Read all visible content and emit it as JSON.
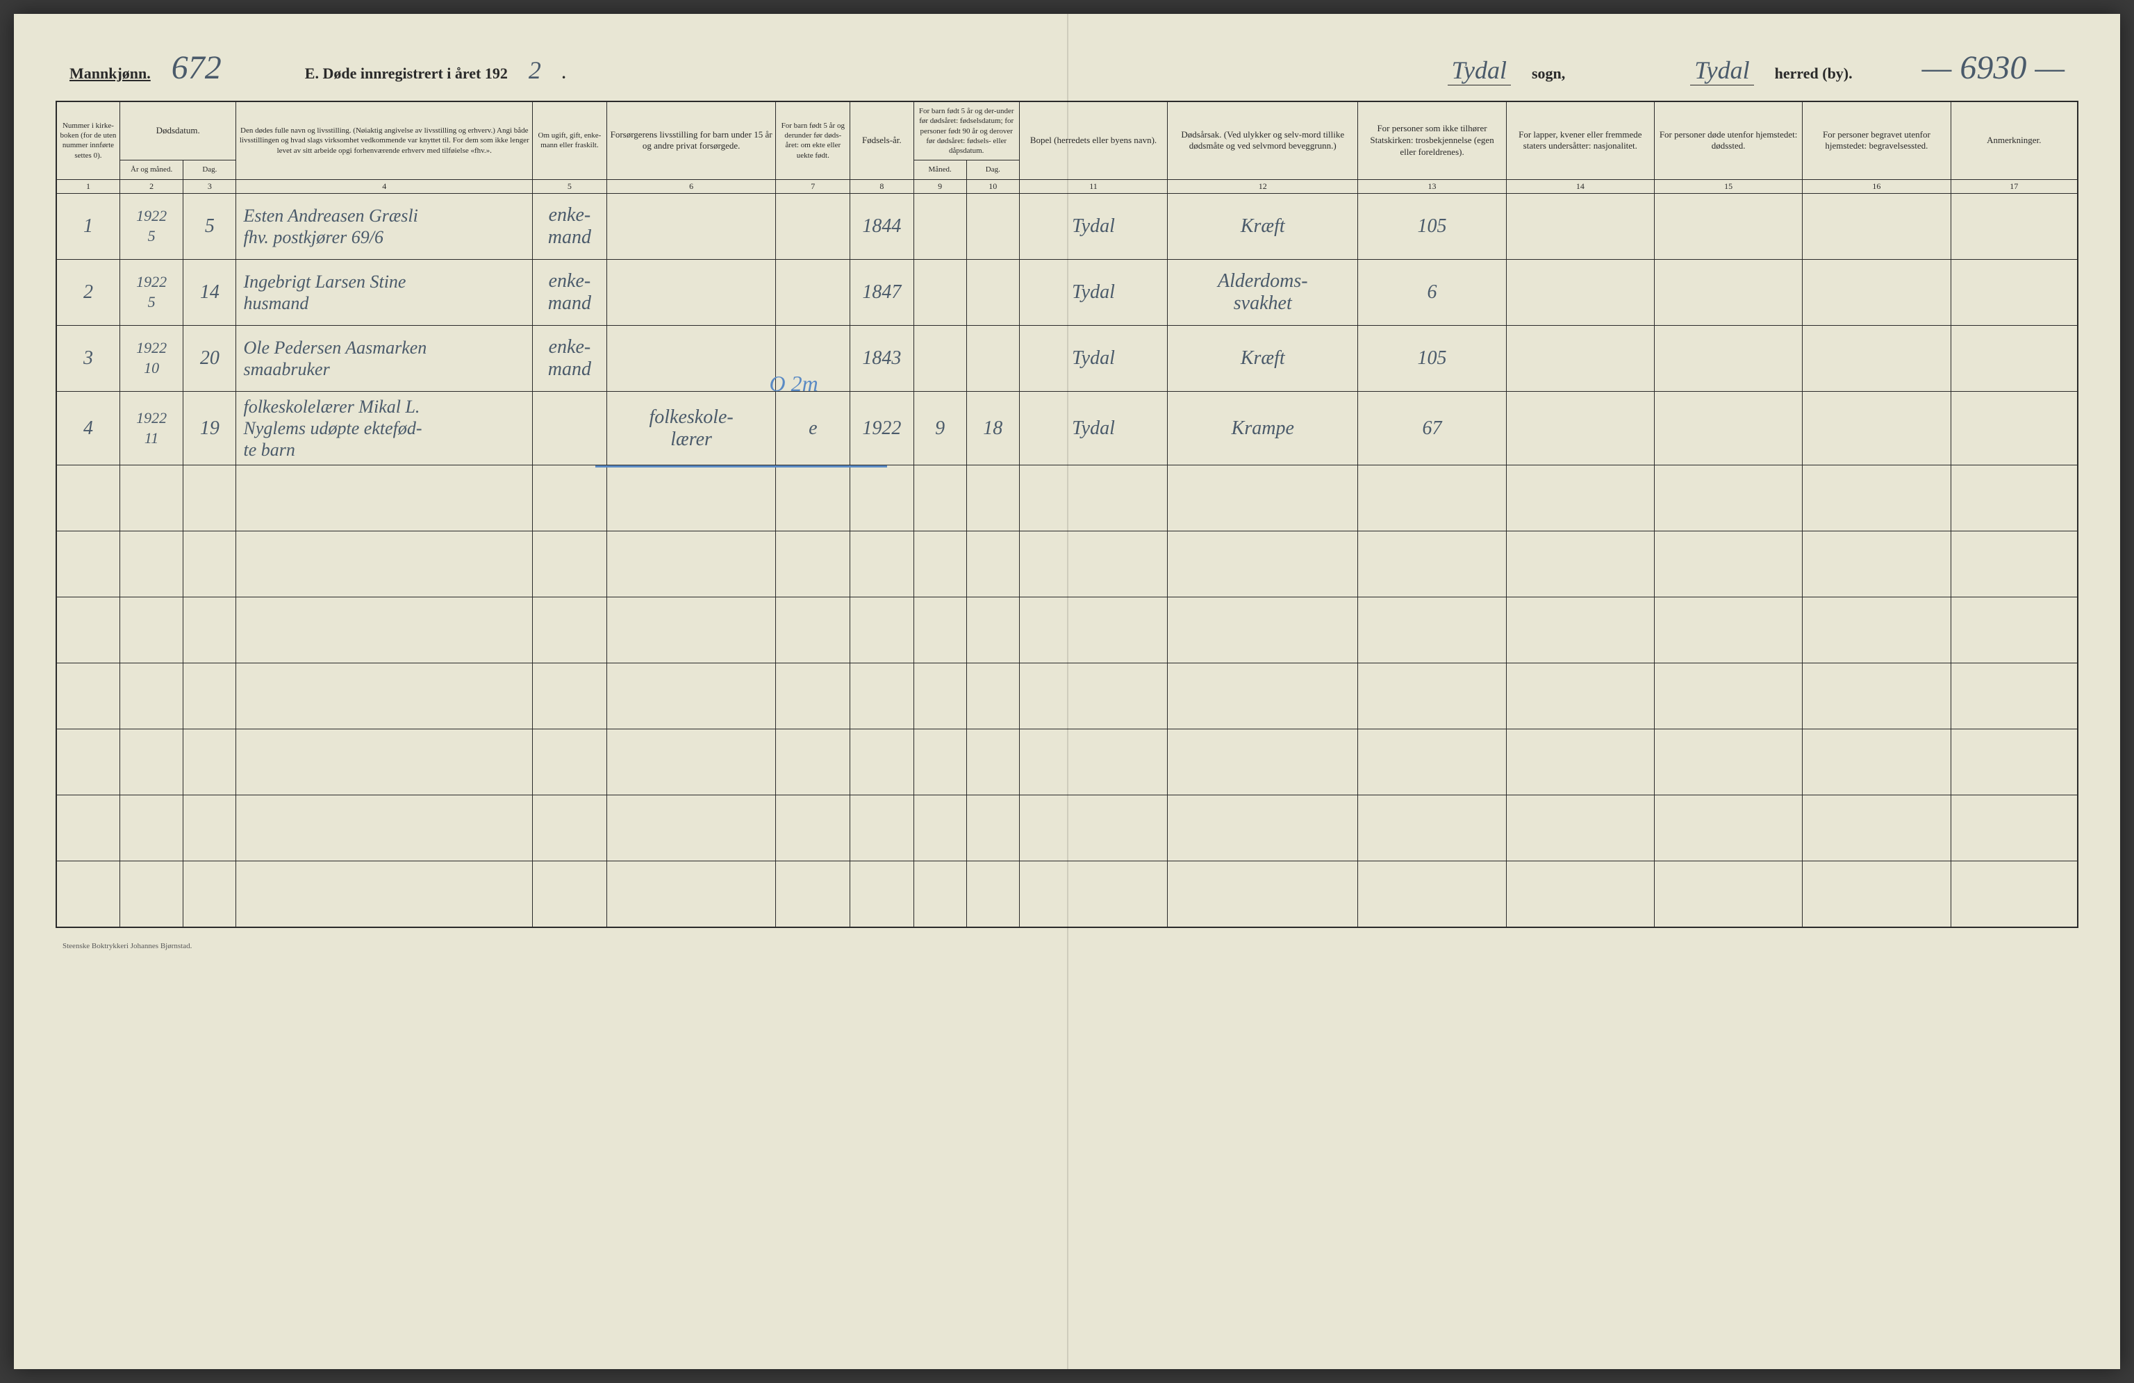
{
  "header": {
    "gender_label": "Mannkjønn.",
    "page_number_hw": "672",
    "title_prefix": "E.   Døde innregistrert i året 192",
    "year_suffix_hw": "2",
    "sogn_hw": "Tydal",
    "sogn_label": "sogn,",
    "herred_hw": "Tydal",
    "herred_label": "herred (by).",
    "right_number_hw": "— 6930 —"
  },
  "columns": {
    "c1": "Nummer i kirke-boken (for de uten nummer innførte settes 0).",
    "c2_group": "Dødsdatum.",
    "c2": "År og måned.",
    "c3": "Dag.",
    "c4": "Den dødes fulle navn og livsstilling. (Nøiaktig angivelse av livsstilling og erhverv.) Angi både livsstillingen og hvad slags virksomhet vedkommende var knyttet til. For dem som ikke lenger levet av sitt arbeide opgi forhenværende erhverv med tilføielse «fhv.».",
    "c5": "Om ugift, gift, enke-mann eller fraskilt.",
    "c6": "Forsørgerens livsstilling for barn under 15 år og andre privat forsørgede.",
    "c7": "For barn født 5 år og derunder før døds-året: om ekte eller uekte født.",
    "c8": "Fødsels-år.",
    "c9_10_group": "For barn født 5 år og der-under før dødsåret: fødselsdatum; for personer født 90 år og derover før dødsåret: fødsels- eller dåpsdatum.",
    "c9": "Måned.",
    "c10": "Dag.",
    "c11": "Bopel (herredets eller byens navn).",
    "c12": "Dødsårsak. (Ved ulykker og selv-mord tillike dødsmåte og ved selvmord beveggrunn.)",
    "c13": "For personer som ikke tilhører Statskirken: trosbekjennelse (egen eller foreldrenes).",
    "c14": "For lapper, kvener eller fremmede staters undersåtter: nasjonalitet.",
    "c15": "For personer døde utenfor hjemstedet: dødssted.",
    "c16": "For personer begravet utenfor hjemstedet: begravelsessted.",
    "c17": "Anmerkninger."
  },
  "colnums": [
    "1",
    "2",
    "3",
    "4",
    "5",
    "6",
    "7",
    "8",
    "9",
    "10",
    "11",
    "12",
    "13",
    "14",
    "15",
    "16",
    "17"
  ],
  "rows": [
    {
      "num": "1",
      "year_month": "1922\n5",
      "day": "5",
      "name": "Esten Andreasen Græsli\nfhv. postkjører 69/6",
      "status": "enke-\nmand",
      "provider": "",
      "legit": "",
      "birth_year": "1844",
      "b_month": "",
      "b_day": "",
      "residence": "Tydal",
      "cause": "Kræft",
      "faith": "105",
      "nationality": "",
      "death_place": "",
      "burial_place": "",
      "remarks": ""
    },
    {
      "num": "2",
      "year_month": "1922\n5",
      "day": "14",
      "name": "Ingebrigt Larsen Stine\nhusmand",
      "status": "enke-\nmand",
      "provider": "",
      "legit": "",
      "birth_year": "1847",
      "b_month": "",
      "b_day": "",
      "residence": "Tydal",
      "cause": "Alderdoms-\nsvakhet",
      "faith": "6",
      "nationality": "",
      "death_place": "",
      "burial_place": "",
      "remarks": ""
    },
    {
      "num": "3",
      "year_month": "1922\n10",
      "day": "20",
      "name": "Ole Pedersen Aasmarken\nsmaabruker",
      "status": "enke-\nmand",
      "provider": "",
      "legit": "",
      "birth_year": "1843",
      "b_month": "",
      "b_day": "",
      "residence": "Tydal",
      "cause": "Kræft",
      "faith": "105",
      "nationality": "",
      "death_place": "",
      "burial_place": "",
      "remarks": ""
    },
    {
      "num": "4",
      "year_month": "1922\n11",
      "day": "19",
      "name": "folkeskolelærer Mikal L.\nNyglems udøpte ektefød-\nte barn",
      "status": "",
      "provider": "folkeskole-\nlærer",
      "legit": "e",
      "birth_year": "1922",
      "b_month": "9",
      "b_day": "18",
      "residence": "Tydal",
      "cause": "Krampe",
      "faith": "67",
      "nationality": "",
      "death_place": "",
      "burial_place": "",
      "remarks": ""
    }
  ],
  "blue_annotation": "O 2m",
  "footer": "Steenske Boktrykkeri Johannes Bjørnstad."
}
